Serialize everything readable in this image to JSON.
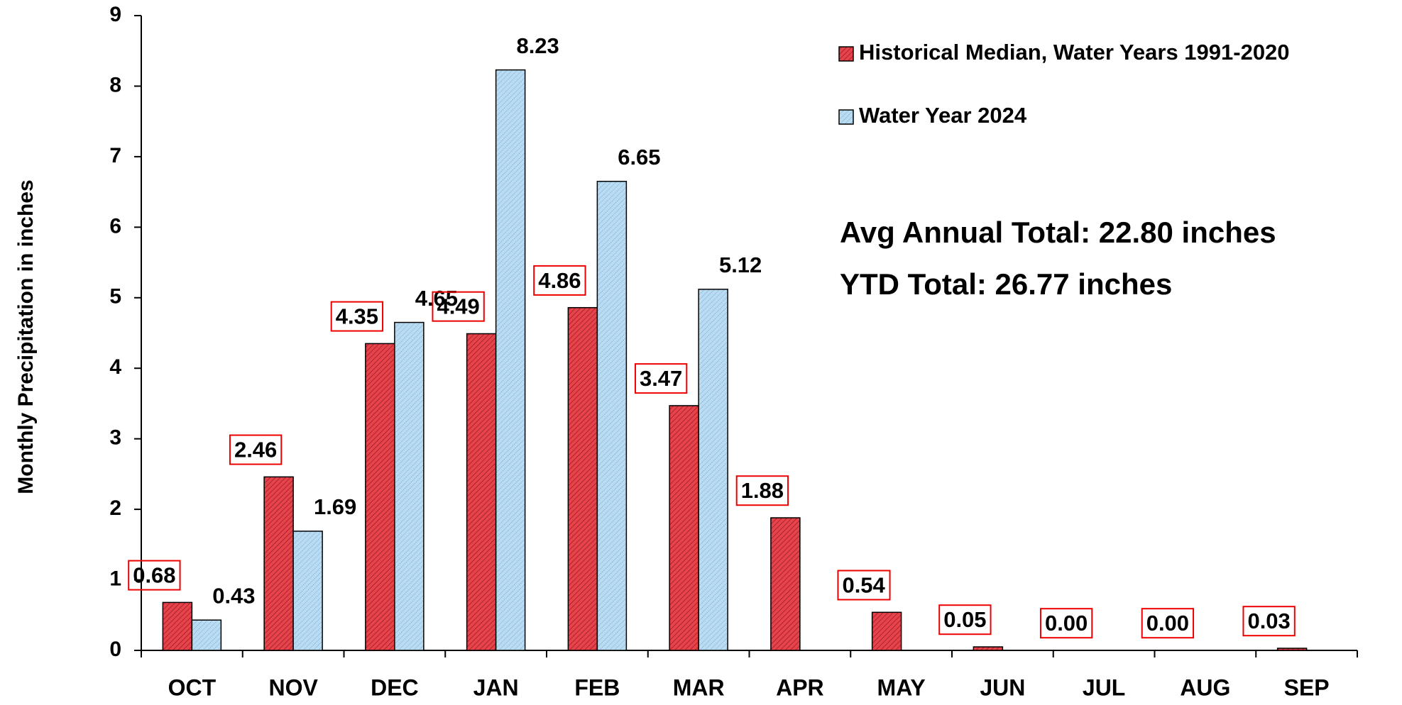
{
  "chart_data": {
    "type": "bar",
    "y_label": "Monthly Precipitation  in inches",
    "categories": [
      "OCT",
      "NOV",
      "DEC",
      "JAN",
      "FEB",
      "MAR",
      "APR",
      "MAY",
      "JUN",
      "JUL",
      "AUG",
      "SEP"
    ],
    "series": [
      {
        "name": "Historical Median, Water Years 1991-2020",
        "color": "#e8424a",
        "values": [
          0.68,
          2.46,
          4.35,
          4.49,
          4.86,
          3.47,
          1.88,
          0.54,
          0.05,
          0,
          0,
          0.03
        ],
        "value_labels": [
          "0.68",
          "2.46",
          "4.35",
          "4.49",
          "4.86",
          "3.47",
          "1.88",
          "0.54",
          "0.05",
          "0.00",
          "0.00",
          "0.03"
        ]
      },
      {
        "name": "Water Year 2024",
        "color": "#b9dcf2",
        "values": [
          0.43,
          1.69,
          4.65,
          8.23,
          6.65,
          5.12,
          null,
          null,
          null,
          null,
          null,
          null
        ],
        "value_labels": [
          "0.43",
          "1.69",
          "4.65",
          "8.23",
          "6.65",
          "5.12",
          null,
          null,
          null,
          null,
          null,
          null
        ]
      }
    ],
    "annotations": [
      "Avg Annual Total: 22.80 inches",
      "YTD Total: 26.77 inches"
    ],
    "ylim": [
      0,
      9
    ],
    "yticks": [
      0,
      1,
      2,
      3,
      4,
      5,
      6,
      7,
      8,
      9
    ],
    "legend": "upper right"
  }
}
